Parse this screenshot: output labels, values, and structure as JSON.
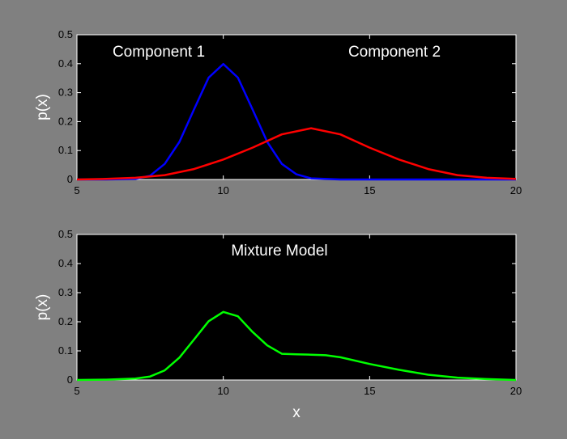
{
  "chart_data": [
    {
      "type": "line",
      "xlim": [
        5,
        20
      ],
      "ylim": [
        0,
        0.5
      ],
      "x_ticks": [
        "5",
        "10",
        "15",
        "20"
      ],
      "y_ticks": [
        "0",
        "0.1",
        "0.2",
        "0.3",
        "0.4",
        "0.5"
      ],
      "xlabel": "",
      "ylabel": "p(x)",
      "grid": false,
      "annotations": [
        "Component 1",
        "Component 2"
      ],
      "series": [
        {
          "name": "Component 1",
          "color": "#0000ff",
          "x": [
            5,
            6,
            7,
            7.5,
            8,
            8.5,
            9,
            9.5,
            10,
            10.5,
            11,
            11.5,
            12,
            12.5,
            13,
            14,
            15,
            20
          ],
          "y": [
            0,
            0,
            0.002,
            0.013,
            0.054,
            0.13,
            0.242,
            0.352,
            0.399,
            0.352,
            0.242,
            0.13,
            0.054,
            0.018,
            0.004,
            0,
            0,
            0
          ]
        },
        {
          "name": "Component 2",
          "color": "#ff0000",
          "x": [
            5,
            6,
            7,
            8,
            9,
            10,
            11,
            12,
            13,
            14,
            15,
            16,
            17,
            18,
            19,
            20
          ],
          "y": [
            0,
            0.002,
            0.006,
            0.015,
            0.036,
            0.069,
            0.11,
            0.156,
            0.177,
            0.156,
            0.11,
            0.069,
            0.036,
            0.015,
            0.006,
            0.002
          ]
        }
      ]
    },
    {
      "type": "line",
      "xlim": [
        5,
        20
      ],
      "ylim": [
        0,
        0.5
      ],
      "x_ticks": [
        "5",
        "10",
        "15",
        "20"
      ],
      "y_ticks": [
        "0",
        "0.1",
        "0.2",
        "0.3",
        "0.4",
        "0.5"
      ],
      "xlabel": "x",
      "ylabel": "p(x)",
      "grid": false,
      "annotations": [
        "Mixture Model"
      ],
      "series": [
        {
          "name": "Mixture Model",
          "color": "#00ff00",
          "x": [
            5,
            6,
            7,
            7.5,
            8,
            8.5,
            9,
            9.5,
            10,
            10.5,
            11,
            11.5,
            12,
            12.5,
            13,
            13.5,
            14,
            15,
            16,
            17,
            18,
            19,
            20
          ],
          "y": [
            0,
            0.001,
            0.005,
            0.012,
            0.033,
            0.077,
            0.139,
            0.202,
            0.234,
            0.219,
            0.165,
            0.119,
            0.09,
            0.088,
            0.087,
            0.085,
            0.078,
            0.055,
            0.035,
            0.018,
            0.008,
            0.003,
            0
          ]
        }
      ]
    }
  ]
}
